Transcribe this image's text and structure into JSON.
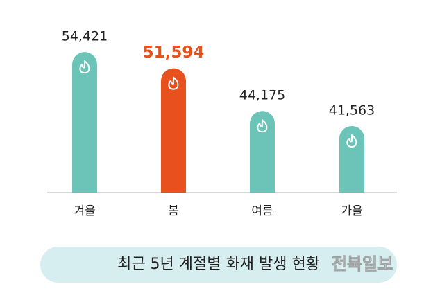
{
  "chart_data": {
    "type": "bar",
    "title": "최근 5년 계절별 화재 발생 현황",
    "watermark": "전북일보",
    "categories": [
      "겨울",
      "봄",
      "여름",
      "가을"
    ],
    "values": [
      54421,
      51594,
      44175,
      41563
    ],
    "value_labels": [
      "54,421",
      "51,594",
      "44,175",
      "41,563"
    ],
    "colors": [
      "#6cc4b8",
      "#e8501e",
      "#6cc4b8",
      "#6cc4b8"
    ],
    "highlight_color": "#e8501e",
    "ylim": [
      30000,
      56000
    ]
  }
}
